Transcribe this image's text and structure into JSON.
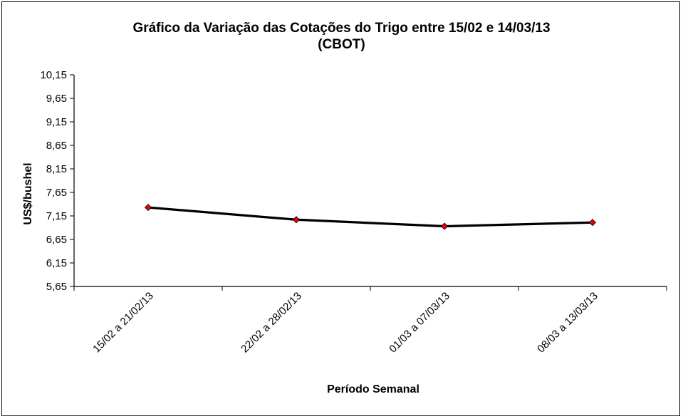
{
  "chart_data": {
    "type": "line",
    "title_line1": "Gráfico da Variação das Cotações do Trigo entre 15/02 e 14/03/13",
    "title_line2": "(CBOT)",
    "xlabel": "Período Semanal",
    "ylabel": "US$/bushel",
    "categories": [
      "15/02 a 21/02/13",
      "22/02 a 28/02/13",
      "01/03 a 07/03/13",
      "08/03 a 13/03/13"
    ],
    "series": [
      {
        "values": [
          7.33,
          7.07,
          6.93,
          7.01
        ]
      }
    ],
    "yticks": [
      "5,65",
      "6,15",
      "6,65",
      "7,15",
      "7,65",
      "8,15",
      "8,65",
      "9,15",
      "9,65",
      "10,15"
    ],
    "ylim": [
      5.65,
      10.15
    ],
    "grid": false,
    "line_color": "#000000",
    "marker_color": "#e8000b"
  }
}
